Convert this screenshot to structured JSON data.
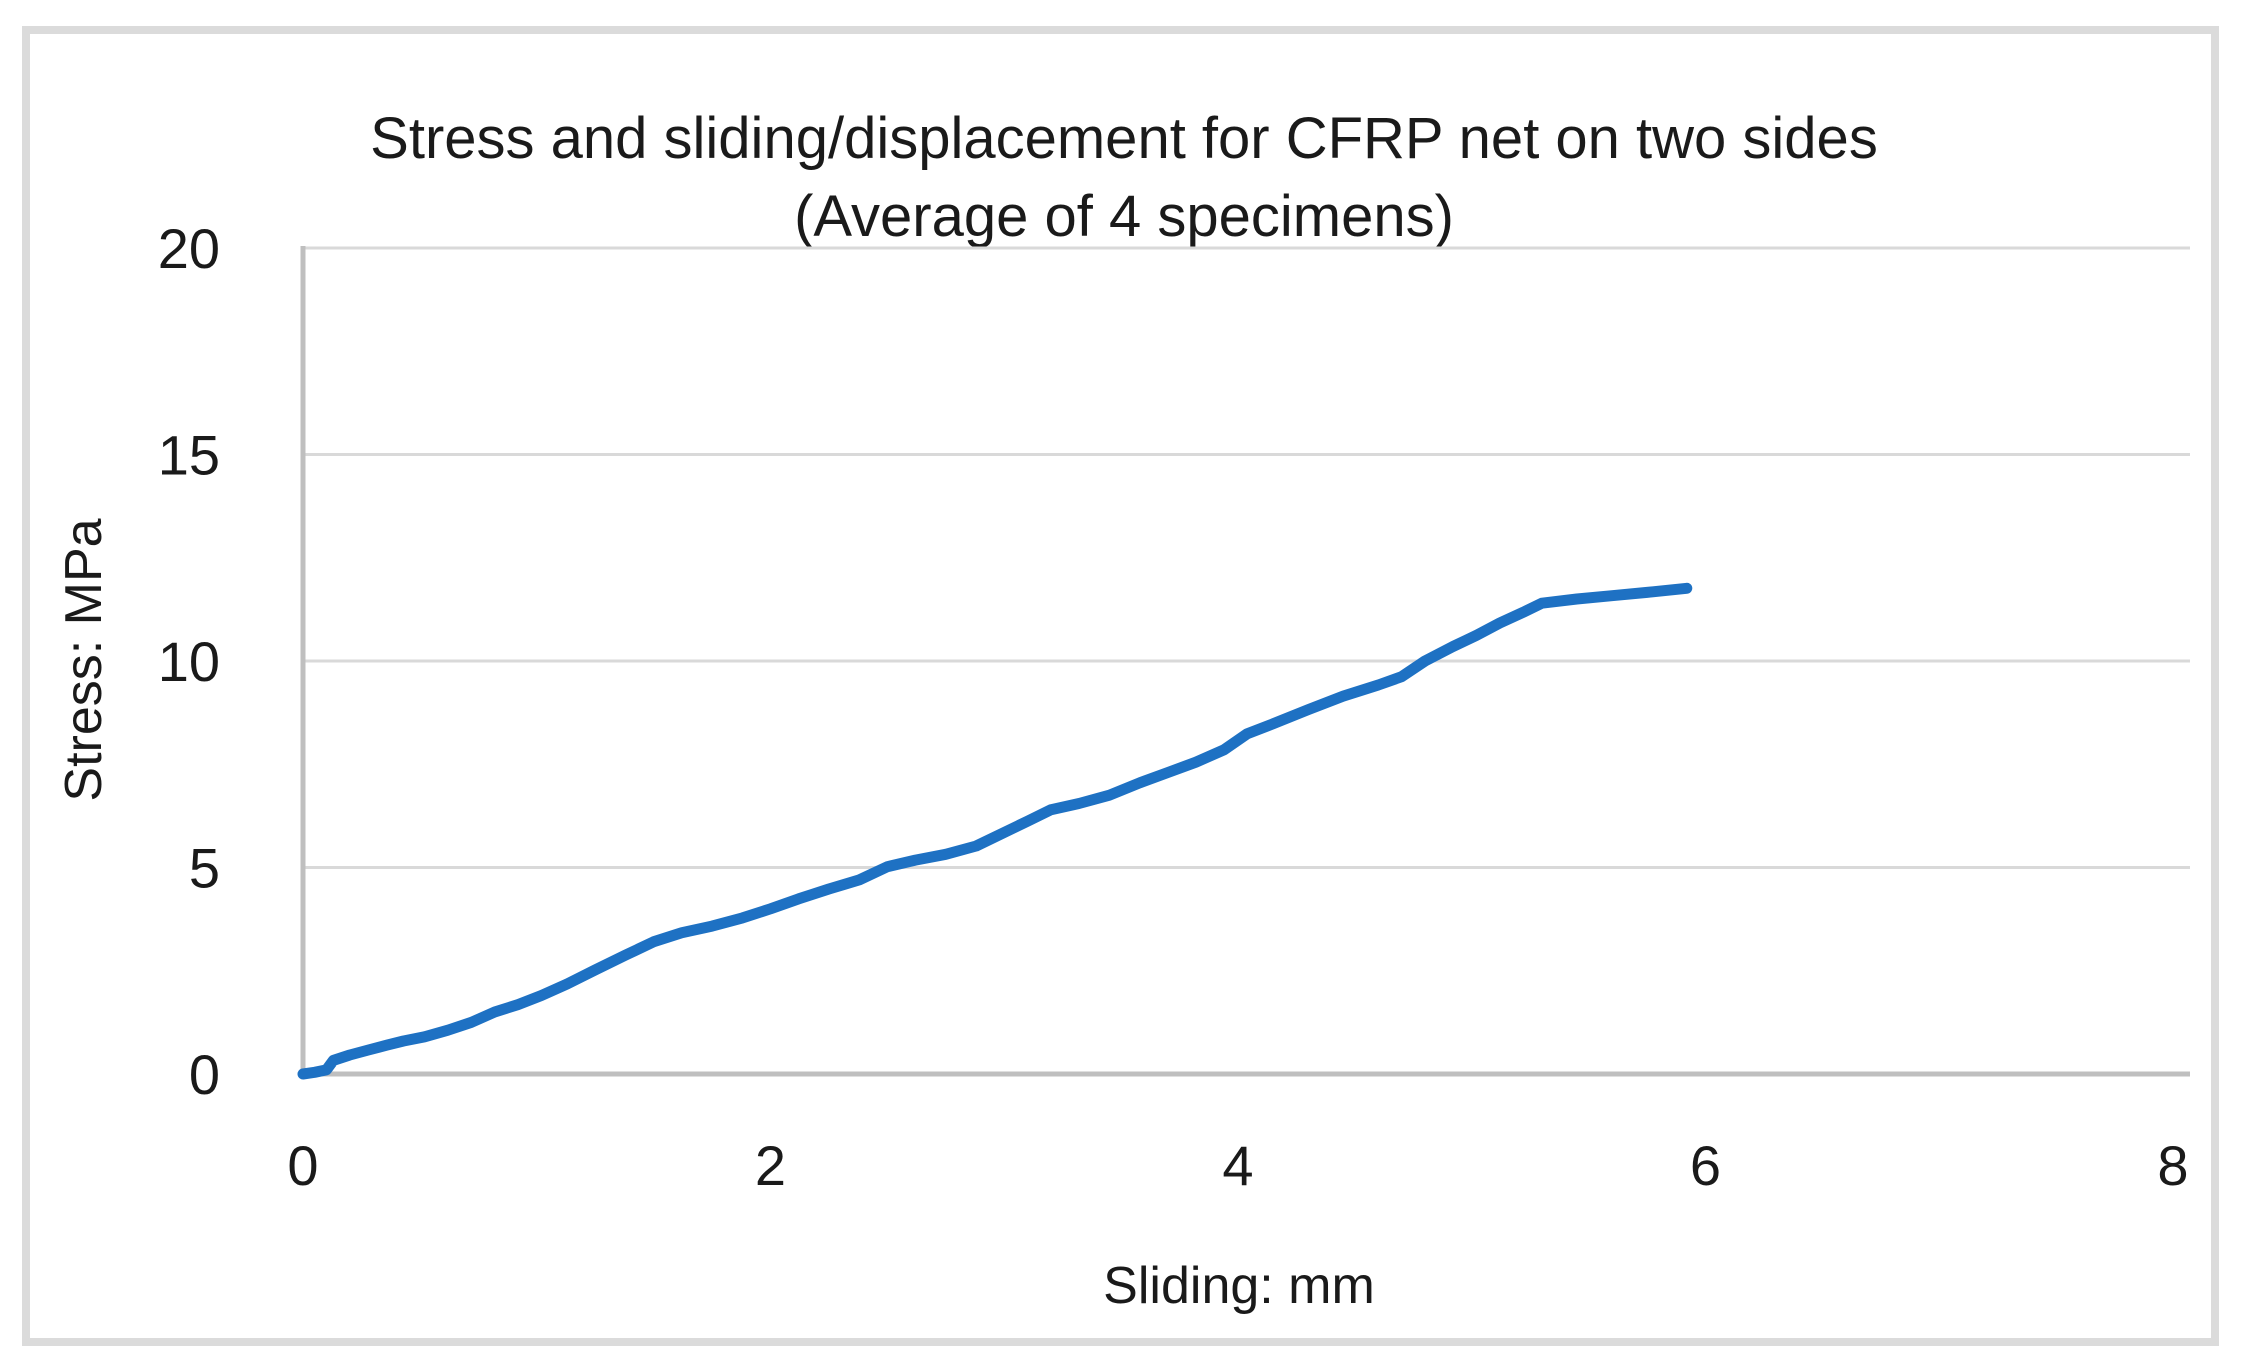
{
  "chart_data": {
    "type": "line",
    "title": "Stress and sliding/displacement for CFRP net on two sides",
    "subtitle": "(Average of 4 specimens)",
    "xlabel": "Sliding: mm",
    "ylabel": "Stress: MPa",
    "xlim": [
      0,
      8
    ],
    "ylim": [
      0,
      20
    ],
    "xticks": [
      0,
      2,
      4,
      6,
      8
    ],
    "yticks": [
      0,
      5,
      10,
      15,
      20
    ],
    "grid": "horizontal-only",
    "legend": "none",
    "series": [
      {
        "name": "Average of 4 specimens",
        "points": [
          [
            0.0,
            0.0
          ],
          [
            0.05,
            0.04
          ],
          [
            0.1,
            0.1
          ],
          [
            0.13,
            0.33
          ],
          [
            0.2,
            0.46
          ],
          [
            0.28,
            0.58
          ],
          [
            0.36,
            0.7
          ],
          [
            0.43,
            0.8
          ],
          [
            0.52,
            0.9
          ],
          [
            0.62,
            1.06
          ],
          [
            0.72,
            1.25
          ],
          [
            0.82,
            1.5
          ],
          [
            0.92,
            1.68
          ],
          [
            1.02,
            1.9
          ],
          [
            1.13,
            2.18
          ],
          [
            1.25,
            2.52
          ],
          [
            1.38,
            2.88
          ],
          [
            1.5,
            3.2
          ],
          [
            1.62,
            3.42
          ],
          [
            1.75,
            3.58
          ],
          [
            1.88,
            3.78
          ],
          [
            2.0,
            4.0
          ],
          [
            2.12,
            4.24
          ],
          [
            2.25,
            4.48
          ],
          [
            2.38,
            4.7
          ],
          [
            2.5,
            5.02
          ],
          [
            2.62,
            5.18
          ],
          [
            2.75,
            5.32
          ],
          [
            2.88,
            5.52
          ],
          [
            3.0,
            5.85
          ],
          [
            3.1,
            6.12
          ],
          [
            3.2,
            6.4
          ],
          [
            3.32,
            6.55
          ],
          [
            3.45,
            6.75
          ],
          [
            3.58,
            7.05
          ],
          [
            3.7,
            7.3
          ],
          [
            3.82,
            7.55
          ],
          [
            3.94,
            7.85
          ],
          [
            4.04,
            8.24
          ],
          [
            4.15,
            8.48
          ],
          [
            4.3,
            8.82
          ],
          [
            4.45,
            9.15
          ],
          [
            4.6,
            9.42
          ],
          [
            4.7,
            9.62
          ],
          [
            4.8,
            10.0
          ],
          [
            4.92,
            10.35
          ],
          [
            5.02,
            10.62
          ],
          [
            5.12,
            10.92
          ],
          [
            5.22,
            11.18
          ],
          [
            5.3,
            11.4
          ],
          [
            5.45,
            11.5
          ],
          [
            5.6,
            11.58
          ],
          [
            5.75,
            11.66
          ],
          [
            5.92,
            11.76
          ]
        ]
      }
    ],
    "colors": {
      "line": "#1e71c3",
      "gridline": "#d9d9d9",
      "axis": "#bfbfbf",
      "text": "#1a1a1a",
      "frame": "#dbdbdb",
      "background": "#ffffff"
    }
  }
}
